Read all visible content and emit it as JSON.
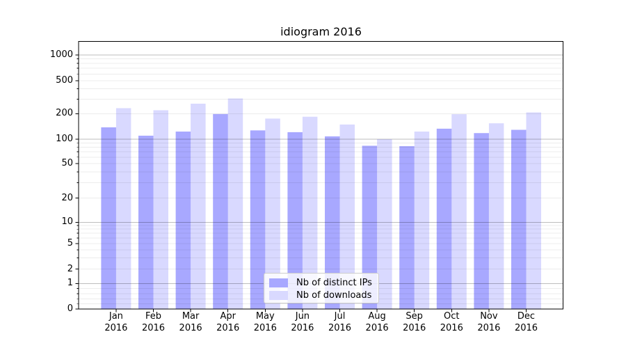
{
  "chart_data": {
    "type": "bar",
    "title": "idiogram 2016",
    "categories": [
      "Jan",
      "Feb",
      "Mar",
      "Apr",
      "May",
      "Jun",
      "Jul",
      "Aug",
      "Sep",
      "Oct",
      "Nov",
      "Dec"
    ],
    "x_year_label": "2016",
    "series": [
      {
        "name": "Nb of distinct IPs",
        "color": "#a8a8ff",
        "values": [
          138,
          110,
          123,
          198,
          127,
          121,
          108,
          83,
          82,
          133,
          118,
          129
        ]
      },
      {
        "name": "Nb of downloads",
        "color": "#d9d9ff",
        "values": [
          233,
          220,
          264,
          305,
          175,
          184,
          149,
          100,
          123,
          197,
          154,
          207
        ]
      }
    ],
    "yscale": "symlog",
    "yticks": [
      0,
      1,
      2,
      5,
      10,
      20,
      50,
      100,
      200,
      500,
      1000
    ],
    "ylim": [
      0,
      1450
    ],
    "grid": "both",
    "legend_position": "lower center",
    "colors": {
      "major_grid": "#bdbdbd",
      "minor_grid": "#ececec",
      "axis_frame": "#000000",
      "background": "#ffffff"
    }
  }
}
